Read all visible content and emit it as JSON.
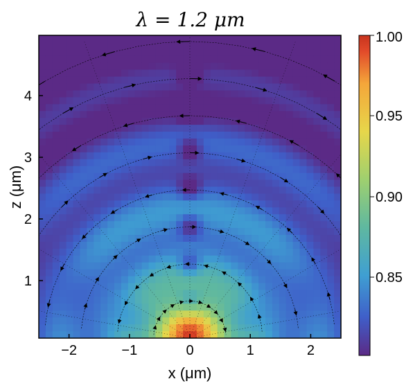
{
  "chart_data": {
    "type": "heatmap",
    "title": "λ = 1.2 μm",
    "xlabel": "x (μm)",
    "ylabel": "z (μm)",
    "xlim": [
      -2.5,
      2.5
    ],
    "ylim": [
      0.05,
      4.95
    ],
    "x_ticks": [
      -2,
      -1,
      0,
      1,
      2
    ],
    "x_tick_labels": [
      "−2",
      "−1",
      "0",
      "1",
      "2"
    ],
    "y_ticks": [
      1,
      2,
      3,
      4
    ],
    "y_tick_labels": [
      "1",
      "2",
      "3",
      "4"
    ],
    "colorbar": {
      "range": [
        0.8,
        1.0
      ],
      "ticks": [
        0.85,
        0.9,
        0.95,
        1.0
      ],
      "tick_labels": [
        "0.85",
        "0.90",
        "0.95",
        "1.00"
      ],
      "colormap": "spectral",
      "colors": [
        "#5b2a86",
        "#3f5fc9",
        "#3f9fd2",
        "#5fb8a0",
        "#9fd06f",
        "#e7d64a",
        "#f4a63a",
        "#e24a2a",
        "#c8331e"
      ]
    },
    "field": {
      "wavelength_um": 1.2,
      "source": {
        "x": 0,
        "z": 0
      },
      "node_minima_z": [
        0.75,
        1.4,
        2.05,
        2.65,
        3.25,
        3.9,
        4.5
      ],
      "overlay": "streamlines with arrows"
    },
    "grid": false
  }
}
